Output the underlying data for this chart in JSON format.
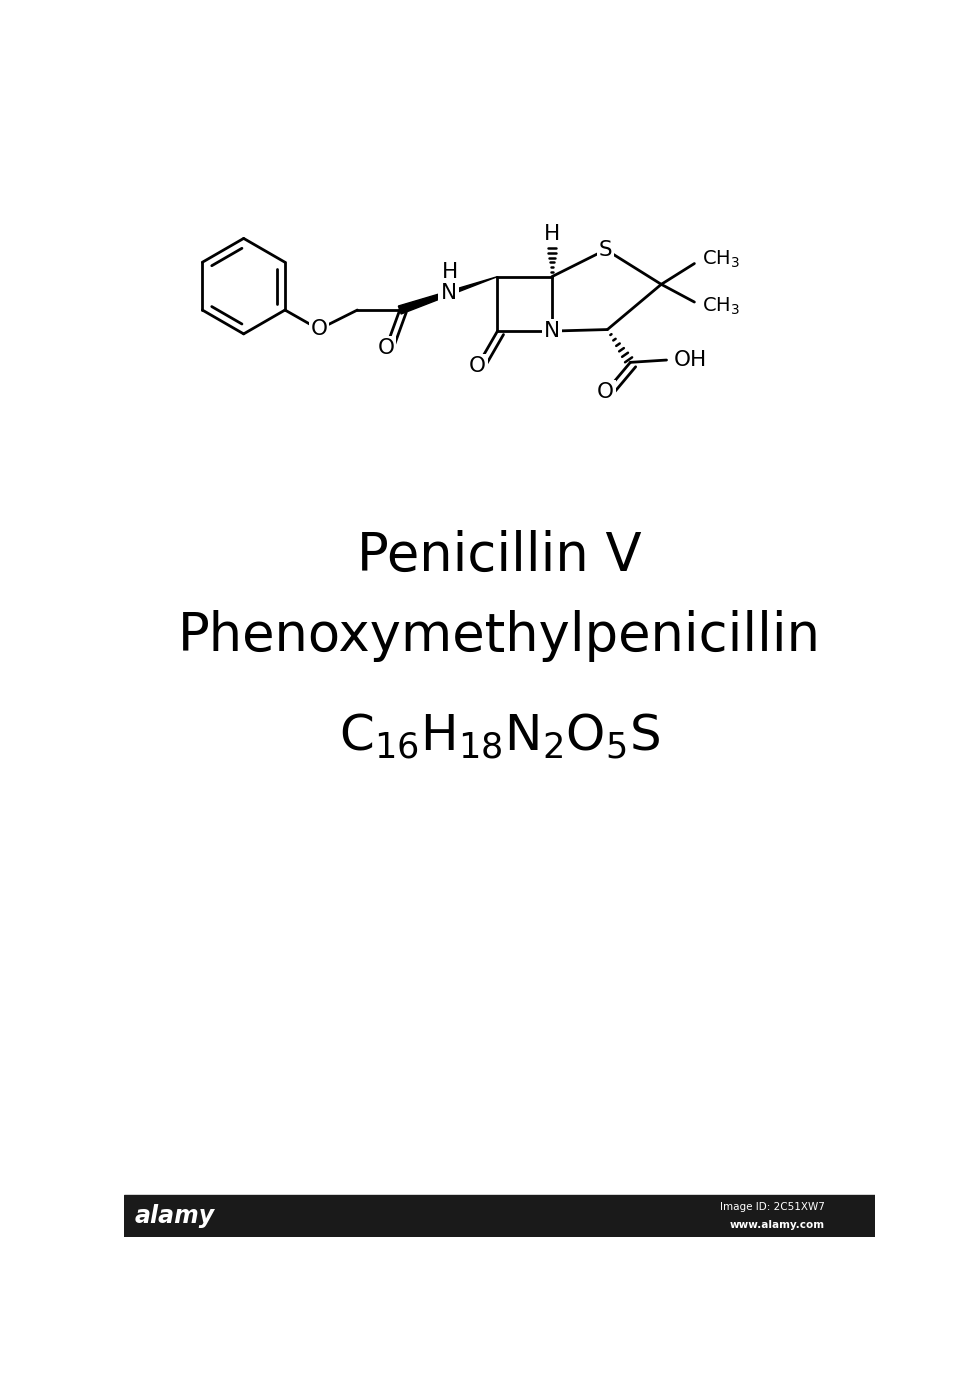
{
  "title1": "Penicillin V",
  "title2": "Phenoxymethylpenicillin",
  "bg_color": "#ffffff",
  "line_color": "#000000",
  "line_width": 2.0,
  "fig_width": 9.75,
  "fig_height": 13.9,
  "title_fontsize": 38,
  "formula_fontsize": 36,
  "alamy_bar_color": "#1a1a1a",
  "alamy_text": "alamy",
  "alamy_id": "Image ID: 2C51XW7",
  "alamy_url": "www.alamy.com"
}
